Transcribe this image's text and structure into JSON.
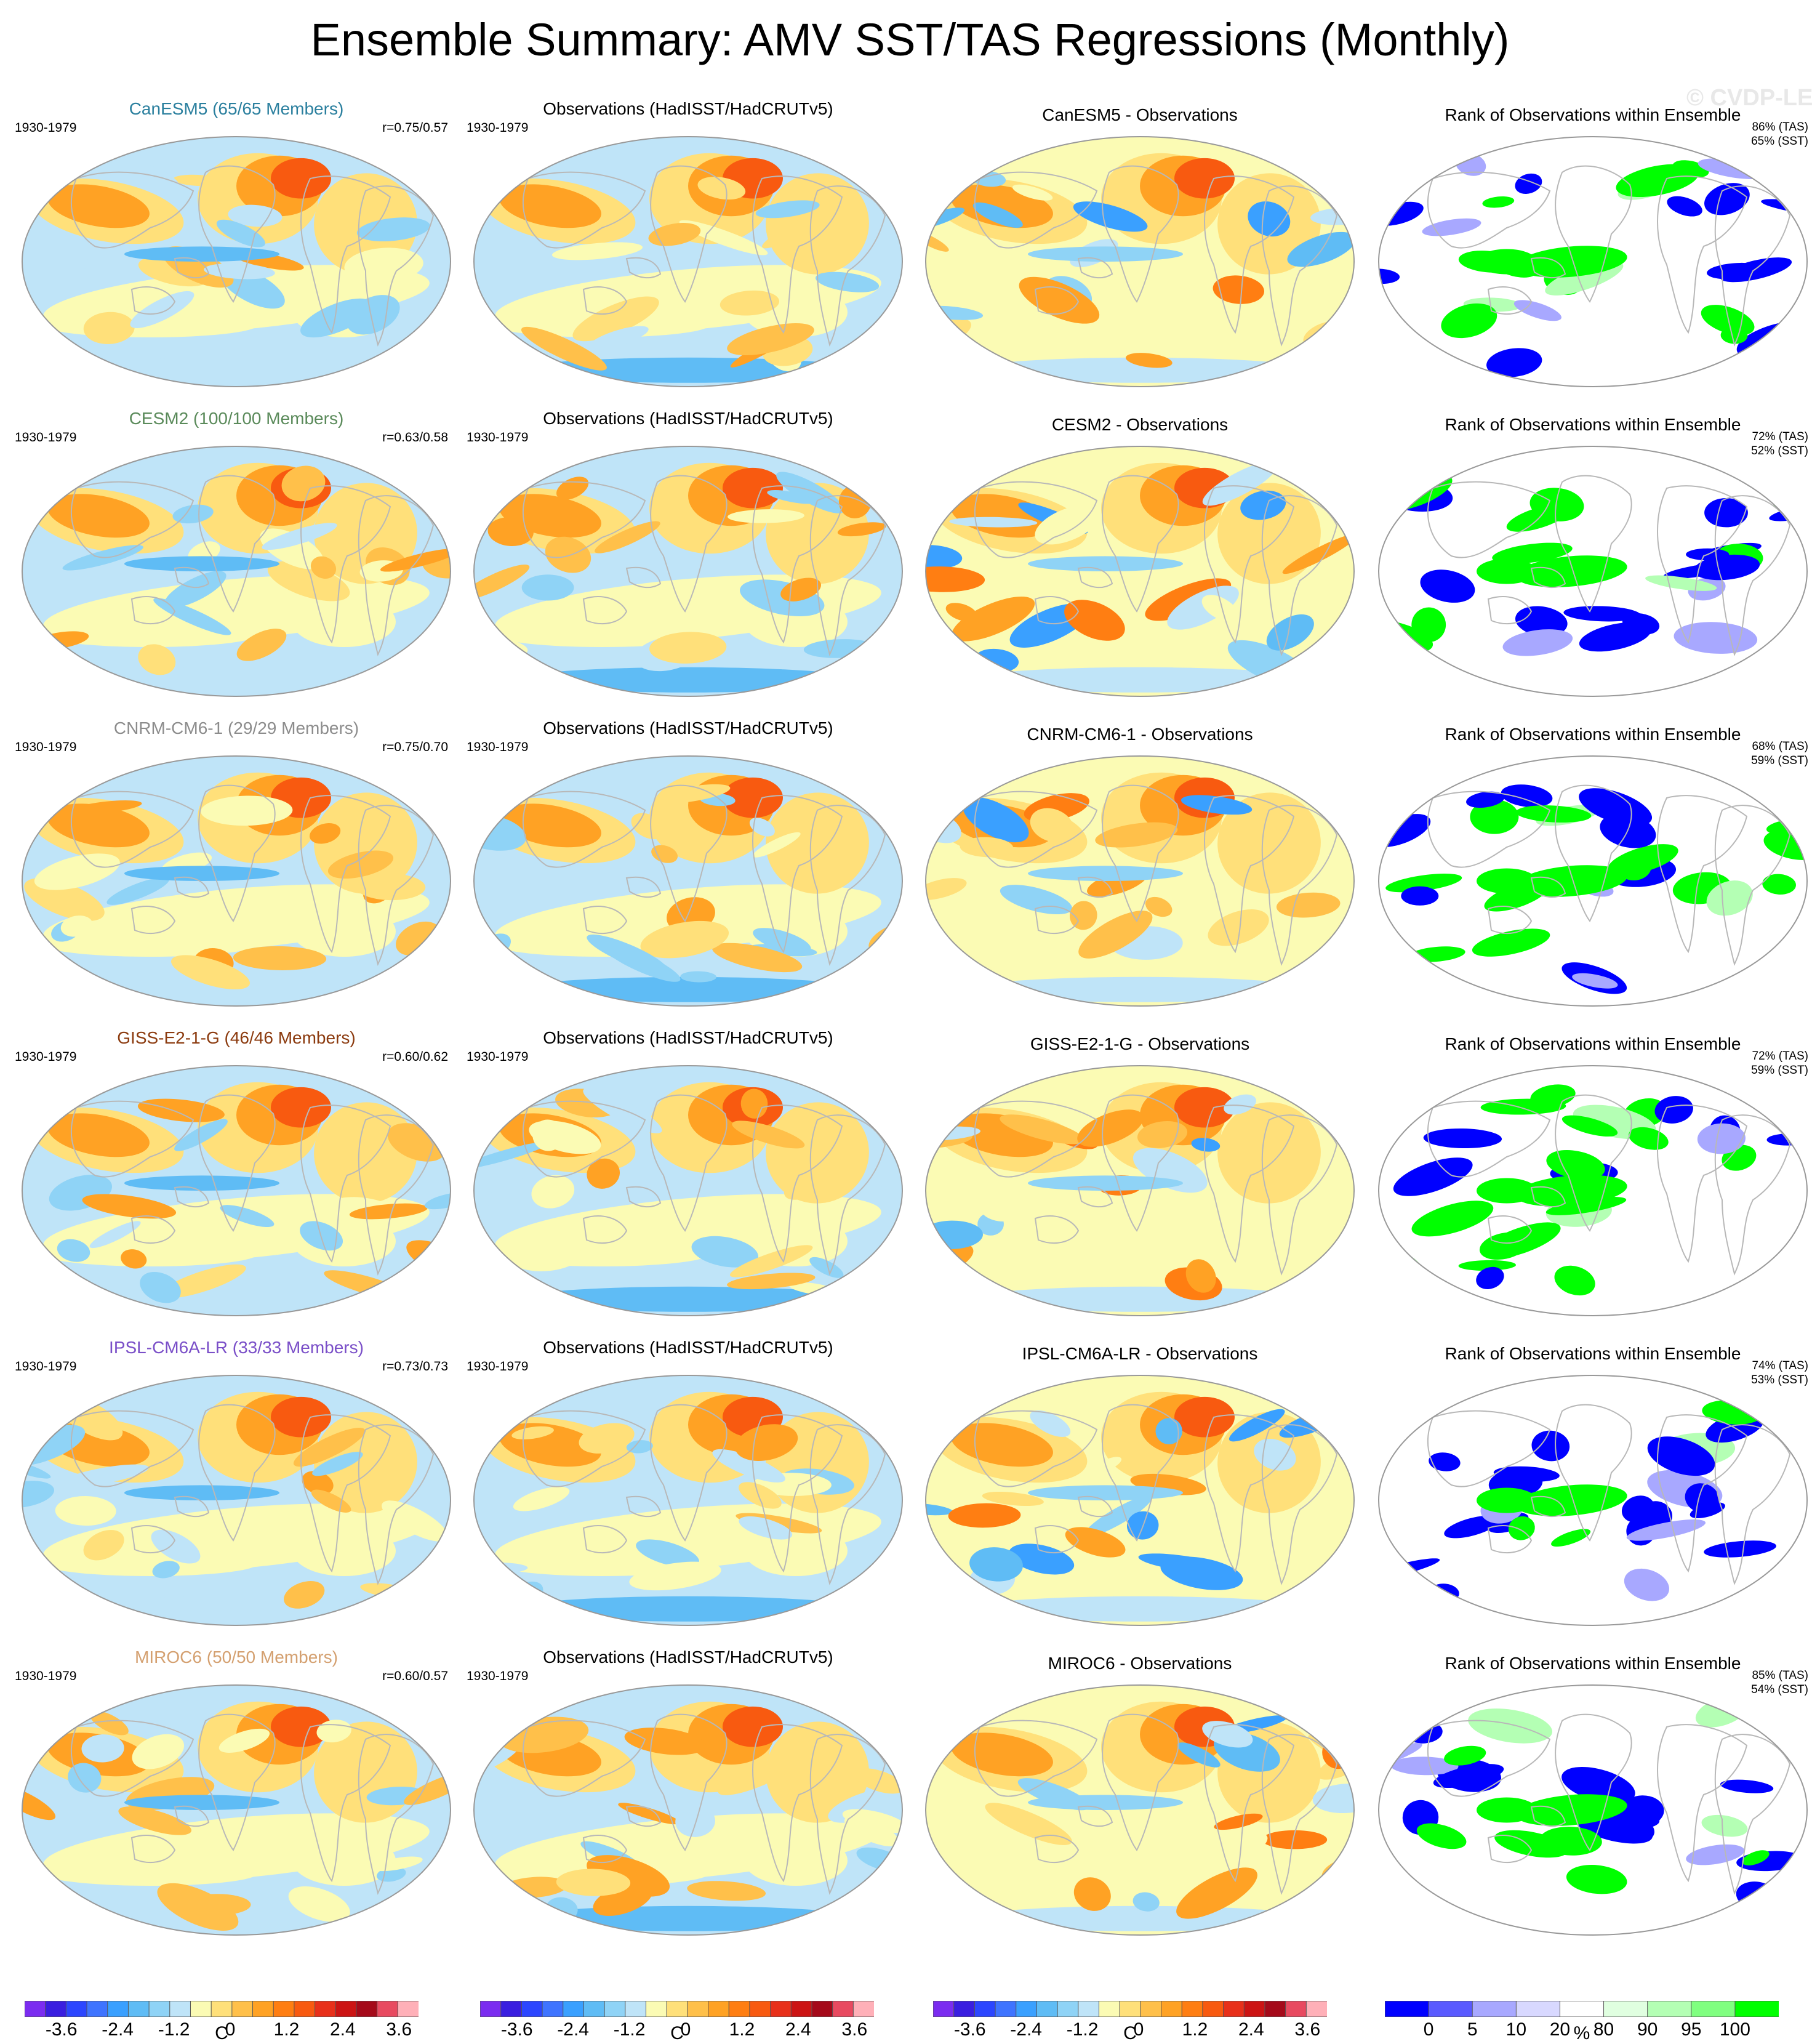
{
  "title": "Ensemble Summary: AMV SST/TAS Regressions (Monthly)",
  "watermark": "© CVDP-LE",
  "obs_title": "Observations (HadISST/HadCRUTv5)",
  "rank_title": "Rank of Observations within Ensemble",
  "colors": {
    "regression_palette": [
      "#7b2cf0",
      "#3a1ee0",
      "#2c46ff",
      "#3f74ff",
      "#3aa0ff",
      "#5fbcf5",
      "#8fd3f6",
      "#bfe4f8",
      "#fbfbb4",
      "#ffe07a",
      "#ffc04a",
      "#ffa224",
      "#ff7e12",
      "#f85a10",
      "#e8301a",
      "#cc1414",
      "#a50a1a",
      "#e84a60",
      "#ffb0b8"
    ],
    "rank_palette": [
      "#0000ff",
      "#5a5aff",
      "#a8a8ff",
      "#d8d8ff",
      "#ffffff",
      "#e0ffe0",
      "#b4ffb4",
      "#80ff80",
      "#00ff00"
    ],
    "ocean_default": "#bfe4f8",
    "land_outline": "#b8b8b8"
  },
  "rows": [
    {
      "model": "CanESM5 (65/65 Members)",
      "model_color": "#2a7f9e",
      "period": "1930-1979",
      "corr": "r=0.75/0.57",
      "diff_title": "CanESM5 - Observations",
      "rank_tas": "86% (TAS)",
      "rank_sst": "65% (SST)"
    },
    {
      "model": "CESM2 (100/100 Members)",
      "model_color": "#5a8a5a",
      "period": "1930-1979",
      "corr": "r=0.63/0.58",
      "diff_title": "CESM2 - Observations",
      "rank_tas": "72% (TAS)",
      "rank_sst": "52% (SST)"
    },
    {
      "model": "CNRM-CM6-1 (29/29 Members)",
      "model_color": "#8c8c8c",
      "period": "1930-1979",
      "corr": "r=0.75/0.70",
      "diff_title": "CNRM-CM6-1 - Observations",
      "rank_tas": "68% (TAS)",
      "rank_sst": "59% (SST)"
    },
    {
      "model": "GISS-E2-1-G (46/46 Members)",
      "model_color": "#8b3a0e",
      "period": "1930-1979",
      "corr": "r=0.60/0.62",
      "diff_title": "GISS-E2-1-G - Observations",
      "rank_tas": "72% (TAS)",
      "rank_sst": "59% (SST)"
    },
    {
      "model": "IPSL-CM6A-LR (33/33 Members)",
      "model_color": "#7a4fc8",
      "period": "1930-1979",
      "corr": "r=0.73/0.73",
      "diff_title": "IPSL-CM6A-LR - Observations",
      "rank_tas": "74% (TAS)",
      "rank_sst": "53% (SST)"
    },
    {
      "model": "MIROC6 (50/50 Members)",
      "model_color": "#d4a070",
      "period": "1930-1979",
      "corr": "r=0.60/0.57",
      "diff_title": "MIROC6 - Observations",
      "rank_tas": "85% (TAS)",
      "rank_sst": "54% (SST)"
    }
  ],
  "colorbars": [
    {
      "unit": "C",
      "ticks": [
        "-3.6",
        "-2.4",
        "-1.2",
        "0",
        "1.2",
        "2.4",
        "3.6"
      ]
    },
    {
      "unit": "C",
      "ticks": [
        "-3.6",
        "-2.4",
        "-1.2",
        "0",
        "1.2",
        "2.4",
        "3.6"
      ]
    },
    {
      "unit": "C",
      "ticks": [
        "-3.6",
        "-2.4",
        "-1.2",
        "0",
        "1.2",
        "2.4",
        "3.6"
      ]
    },
    {
      "unit": "%",
      "ticks": [
        "0",
        "5",
        "10",
        "20",
        "80",
        "90",
        "95",
        "100"
      ]
    }
  ],
  "chart_data": {
    "type": "heatmap",
    "title": "Ensemble Summary: AMV SST/TAS Regressions (Monthly)",
    "panels_per_row": [
      "model ensemble mean",
      "Observations (HadISST/HadCRUTv5)",
      "model - Observations",
      "Rank of Observations within Ensemble"
    ],
    "regression_scale": {
      "unit": "C",
      "ticks": [
        -3.6,
        -2.4,
        -1.2,
        0,
        1.2,
        2.4,
        3.6
      ]
    },
    "rank_scale": {
      "unit": "%",
      "ticks": [
        0,
        5,
        10,
        20,
        80,
        90,
        95,
        100
      ]
    },
    "models": [
      {
        "name": "CanESM5",
        "members": "65/65",
        "r": [
          0.75,
          0.57
        ],
        "rank_pct": {
          "TAS": 86,
          "SST": 65
        }
      },
      {
        "name": "CESM2",
        "members": "100/100",
        "r": [
          0.63,
          0.58
        ],
        "rank_pct": {
          "TAS": 72,
          "SST": 52
        }
      },
      {
        "name": "CNRM-CM6-1",
        "members": "29/29",
        "r": [
          0.75,
          0.7
        ],
        "rank_pct": {
          "TAS": 68,
          "SST": 59
        }
      },
      {
        "name": "GISS-E2-1-G",
        "members": "46/46",
        "r": [
          0.6,
          0.62
        ],
        "rank_pct": {
          "TAS": 72,
          "SST": 59
        }
      },
      {
        "name": "IPSL-CM6A-LR",
        "members": "33/33",
        "r": [
          0.73,
          0.73
        ],
        "rank_pct": {
          "TAS": 74,
          "SST": 53
        }
      },
      {
        "name": "MIROC6",
        "members": "50/50",
        "r": [
          0.6,
          0.57
        ],
        "rank_pct": {
          "TAS": 85,
          "SST": 54
        }
      }
    ]
  }
}
